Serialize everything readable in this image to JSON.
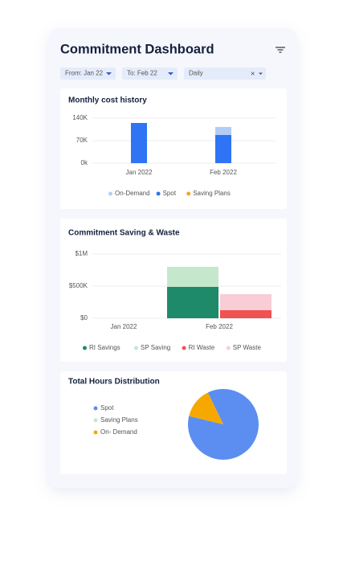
{
  "title": "Commitment Dashboard",
  "filters": [
    "From: Jan 22",
    "To: Feb 22",
    "Daily"
  ],
  "chart_data": [
    {
      "type": "bar",
      "title": "Monthly cost history",
      "stacked": true,
      "categories": [
        "Jan 2022",
        "Feb 2022"
      ],
      "series": [
        {
          "name": "On-Demand",
          "color": "#b3cdf7",
          "values": [
            0,
            25000
          ]
        },
        {
          "name": "Spot",
          "color": "#2f74f5",
          "values": [
            125000,
            87500
          ]
        },
        {
          "name": "Saving Plans",
          "color": "#f5a623",
          "values": [
            0,
            0
          ]
        }
      ],
      "ylim": [
        0,
        140000
      ],
      "yticks": [
        {
          "value": 0,
          "label": "0k"
        },
        {
          "value": 70000,
          "label": "70K"
        },
        {
          "value": 140000,
          "label": "140K"
        }
      ],
      "grid": true
    },
    {
      "type": "bar",
      "title": "Commitment Saving & Waste",
      "stacked": true,
      "categories": [
        "Jan 2022",
        "Feb 2022"
      ],
      "series": [
        {
          "name": "RI Savings",
          "color": "#1e8a6a",
          "values": [
            0,
            490000
          ]
        },
        {
          "name": "SP Saving",
          "color": "#c5e8cc",
          "values": [
            0,
            310000
          ]
        },
        {
          "name": "RI Waste",
          "color": "#f05252",
          "values": [
            0,
            125000
          ]
        },
        {
          "name": "SP Waste",
          "color": "#f9cdd5",
          "values": [
            0,
            250000
          ]
        }
      ],
      "ylim": [
        0,
        1000000
      ],
      "yticks": [
        {
          "value": 0,
          "label": "$0"
        },
        {
          "value": 500000,
          "label": "$500K"
        },
        {
          "value": 1000000,
          "label": "$1M"
        }
      ],
      "grid": true
    },
    {
      "type": "pie",
      "title": "Total Hours Distribution",
      "categories": [
        "Spot",
        "Saving Plans",
        "On- Demand"
      ],
      "values": [
        86,
        0,
        14
      ],
      "colors": [
        "#5b8ef0",
        "#c5e8cc",
        "#f7a800"
      ]
    }
  ]
}
